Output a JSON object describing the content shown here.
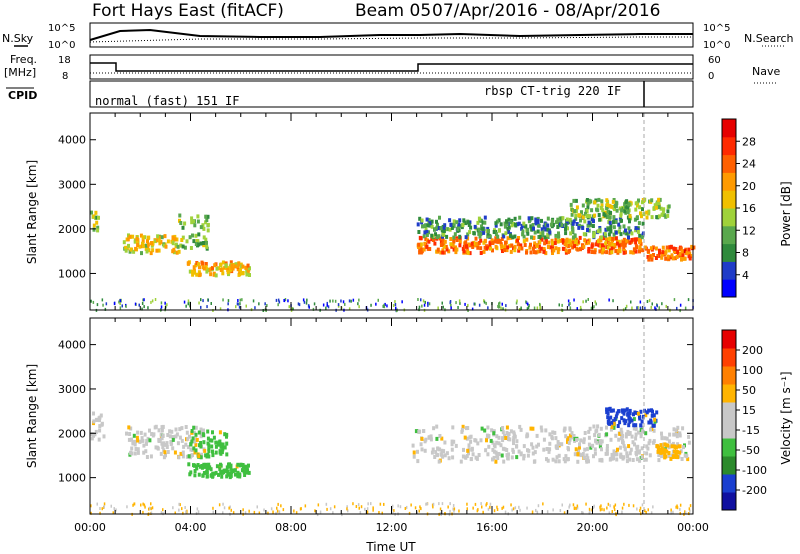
{
  "header": {
    "station": "Fort Hays East (fitACF)",
    "beam": "Beam 05",
    "date_range": "07/Apr/2016 - 08/Apr/2016"
  },
  "strips": {
    "nsky_label": "N.Sky",
    "nsearch_label": "N.Search",
    "noise_ticks_left": [
      "10^5",
      "10^0"
    ],
    "noise_ticks_right": [
      "10^5",
      "10^0"
    ],
    "freq_label_1": "Freq.",
    "freq_label_2": "[MHz]",
    "freq_ticks": [
      "18",
      "8"
    ],
    "nave_label": "Nave",
    "nave_ticks": [
      "60",
      "0"
    ],
    "cpid_label": "CPID",
    "cpid_1": "normal (fast) 151 IF",
    "cpid_2": "rbsp CT-trig 220 IF"
  },
  "colors": {
    "power_scale": [
      "#0000ff",
      "#1f3cc8",
      "#2f8a3c",
      "#59a84d",
      "#9fd23a",
      "#f0c000",
      "#ff9a00",
      "#ff6000",
      "#ff2a00",
      "#e60000"
    ],
    "velocity_scale": [
      "#1010a0",
      "#1a3fd0",
      "#2b8a2b",
      "#3fbf3f",
      "#c8c8c8",
      "#c8c8c8",
      "#ffb400",
      "#ff8000",
      "#ff4000",
      "#e60000"
    ],
    "velocity_gray": "#c8c8c8"
  },
  "chart_data": [
    {
      "type": "heatmap",
      "name": "power",
      "ylabel": "Slant Range [km]",
      "yticks": [
        "4000",
        "3000",
        "2000",
        "1000"
      ],
      "ylim": [
        180,
        4600
      ],
      "xlim": [
        "00:00",
        "00:00"
      ],
      "colorbar_label": "Power [dB]",
      "colorbar_ticks": [
        "28",
        "24",
        "20",
        "16",
        "12",
        "8",
        "4"
      ],
      "clim": [
        0,
        32
      ],
      "bands": [
        {
          "t": [
            0.0,
            0.3
          ],
          "r": [
            1950,
            2450
          ],
          "v": 14
        },
        {
          "t": [
            1.3,
            3.5
          ],
          "r": [
            1500,
            1900
          ],
          "v": 17
        },
        {
          "t": [
            3.5,
            4.7
          ],
          "r": [
            1600,
            2350
          ],
          "v": 13
        },
        {
          "t": [
            3.8,
            6.3
          ],
          "r": [
            1000,
            1300
          ],
          "v": 19
        },
        {
          "t": [
            13.0,
            22.0
          ],
          "r": [
            1500,
            1850
          ],
          "v": 23
        },
        {
          "t": [
            22.0,
            24.0
          ],
          "r": [
            1350,
            1650
          ],
          "v": 24
        },
        {
          "t": [
            13.0,
            22.0
          ],
          "r": [
            1850,
            2300
          ],
          "v": 9
        },
        {
          "t": [
            19.0,
            23.0
          ],
          "r": [
            2300,
            2700
          ],
          "v": 13
        }
      ]
    },
    {
      "type": "heatmap",
      "name": "velocity",
      "ylabel": "Slant Range [km]",
      "yticks": [
        "4000",
        "3000",
        "2000",
        "1000"
      ],
      "ylim": [
        180,
        4600
      ],
      "xlim": [
        "00:00",
        "00:00"
      ],
      "xticks": [
        "00:00",
        "04:00",
        "08:00",
        "12:00",
        "16:00",
        "20:00",
        "00:00"
      ],
      "xlabel": "Time UT",
      "colorbar_label": "Velocity [m s⁻¹]",
      "colorbar_ticks": [
        "200",
        "100",
        "50",
        "15",
        "-15",
        "-50",
        "-100",
        "-200"
      ],
      "bands": [
        {
          "t": [
            0.0,
            0.5
          ],
          "r": [
            1900,
            2500
          ],
          "c": "gray"
        },
        {
          "t": [
            1.3,
            4.5
          ],
          "r": [
            1500,
            2200
          ],
          "c": "gray"
        },
        {
          "t": [
            3.8,
            5.4
          ],
          "r": [
            1500,
            2100
          ],
          "c": "green"
        },
        {
          "t": [
            3.8,
            6.3
          ],
          "r": [
            1050,
            1350
          ],
          "c": "green"
        },
        {
          "t": [
            12.8,
            23.8
          ],
          "r": [
            1400,
            2200
          ],
          "c": "gray"
        },
        {
          "t": [
            20.5,
            22.5
          ],
          "r": [
            2200,
            2600
          ],
          "c": "blue"
        },
        {
          "t": [
            22.5,
            23.5
          ],
          "r": [
            1500,
            1800
          ],
          "c": "orange"
        }
      ]
    }
  ]
}
